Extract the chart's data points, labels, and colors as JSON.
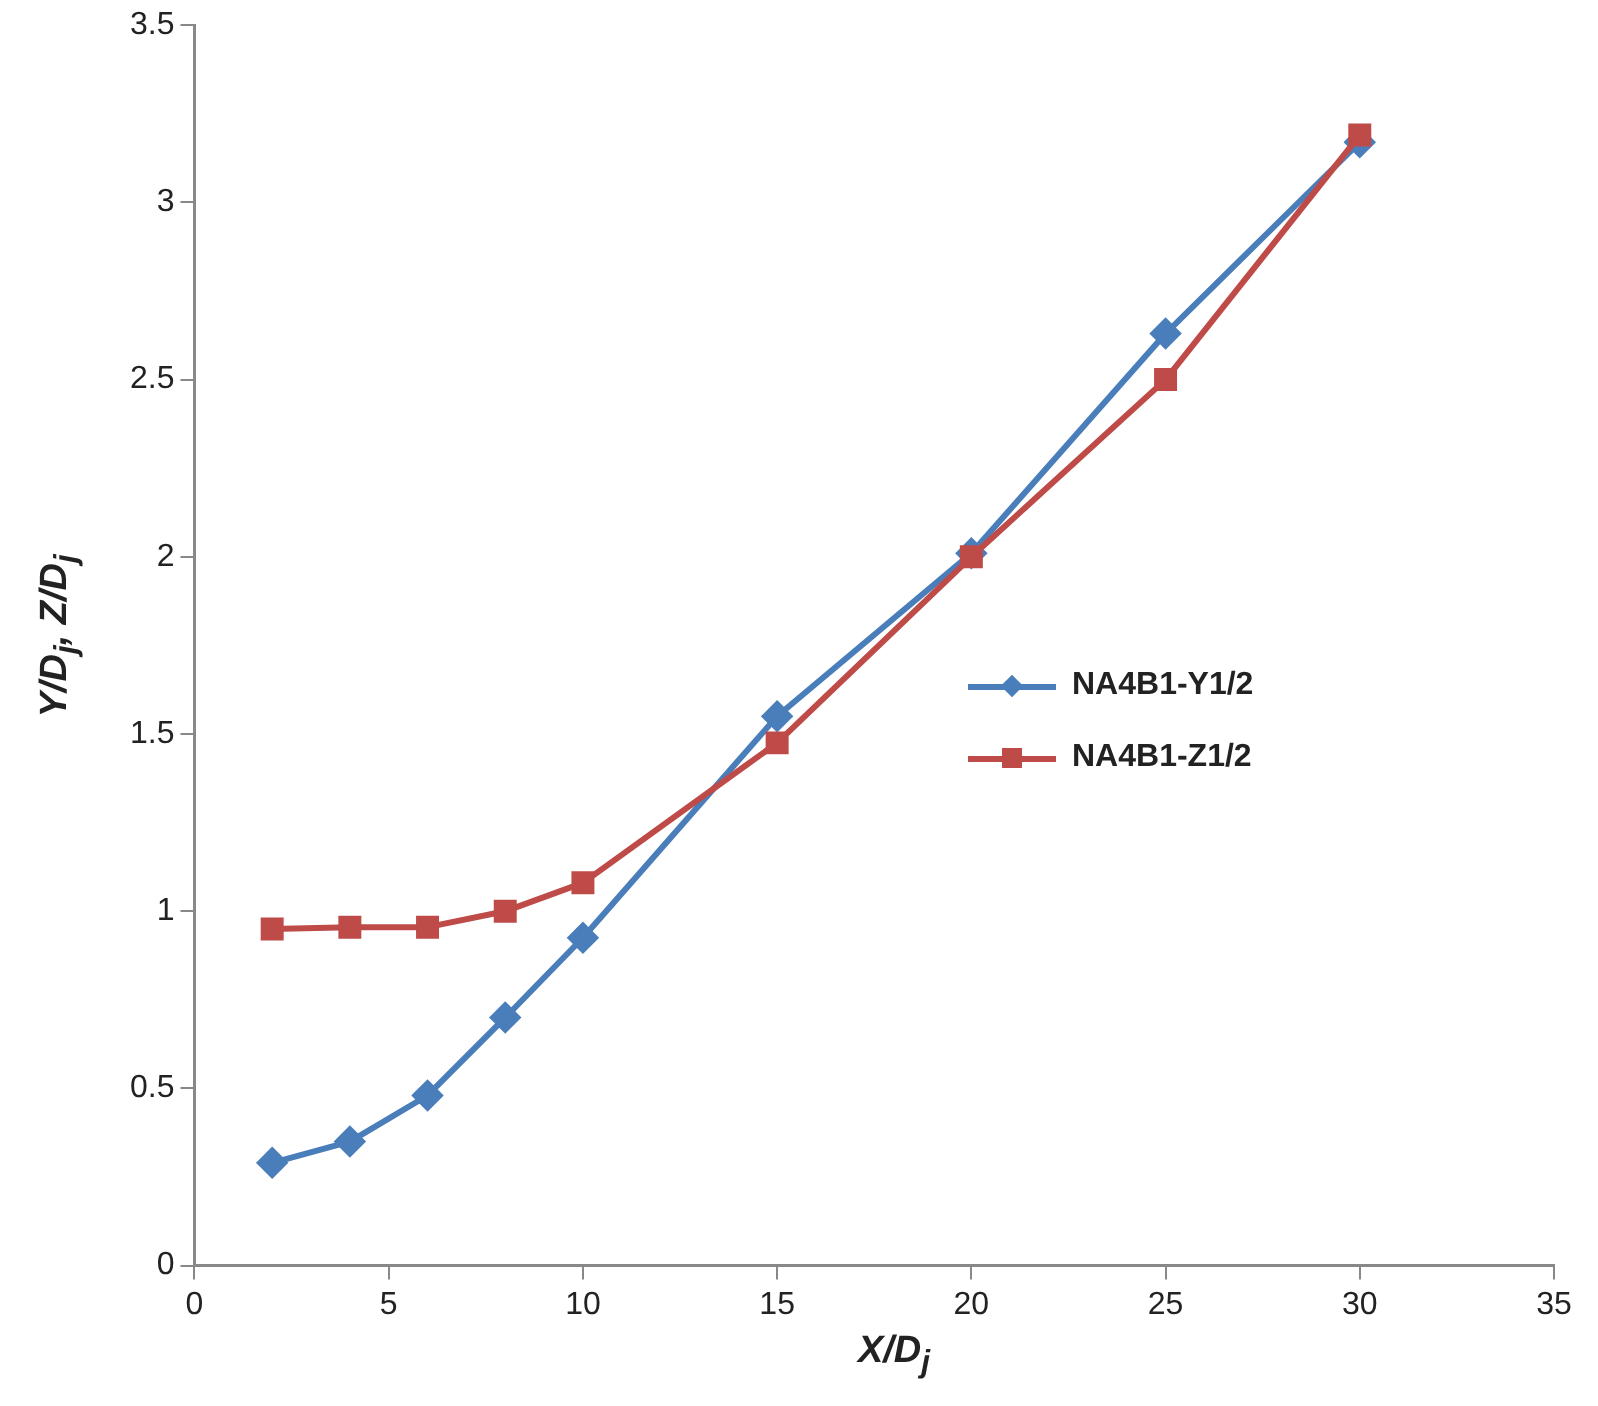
{
  "chart_data": {
    "type": "line",
    "xlabel": "X/D$_{j}$",
    "ylabel": "Y/D$_{j}$, Z/D$_{j}$",
    "x": [
      2,
      4,
      6,
      8,
      10,
      15,
      20,
      25,
      30
    ],
    "series": [
      {
        "name": "NA4B1-Y1/2",
        "color": "#4a7ebb",
        "marker": "diamond",
        "values": [
          0.29,
          0.35,
          0.48,
          0.7,
          0.925,
          1.55,
          2.01,
          2.63,
          3.17
        ]
      },
      {
        "name": "NA4B1-Z1/2",
        "color": "#be4b48",
        "marker": "square",
        "values": [
          0.95,
          0.955,
          0.955,
          1.0,
          1.08,
          1.475,
          2.0,
          2.5,
          3.19
        ]
      }
    ],
    "xlim": [
      0,
      35
    ],
    "xticks": [
      0,
      5,
      10,
      15,
      20,
      25,
      30,
      35
    ],
    "ylim": [
      0,
      3.5
    ],
    "yticks": [
      0,
      0.5,
      1,
      1.5,
      2,
      2.5,
      3,
      3.5
    ],
    "grid": false,
    "legend": "right",
    "line_style": "solid"
  }
}
